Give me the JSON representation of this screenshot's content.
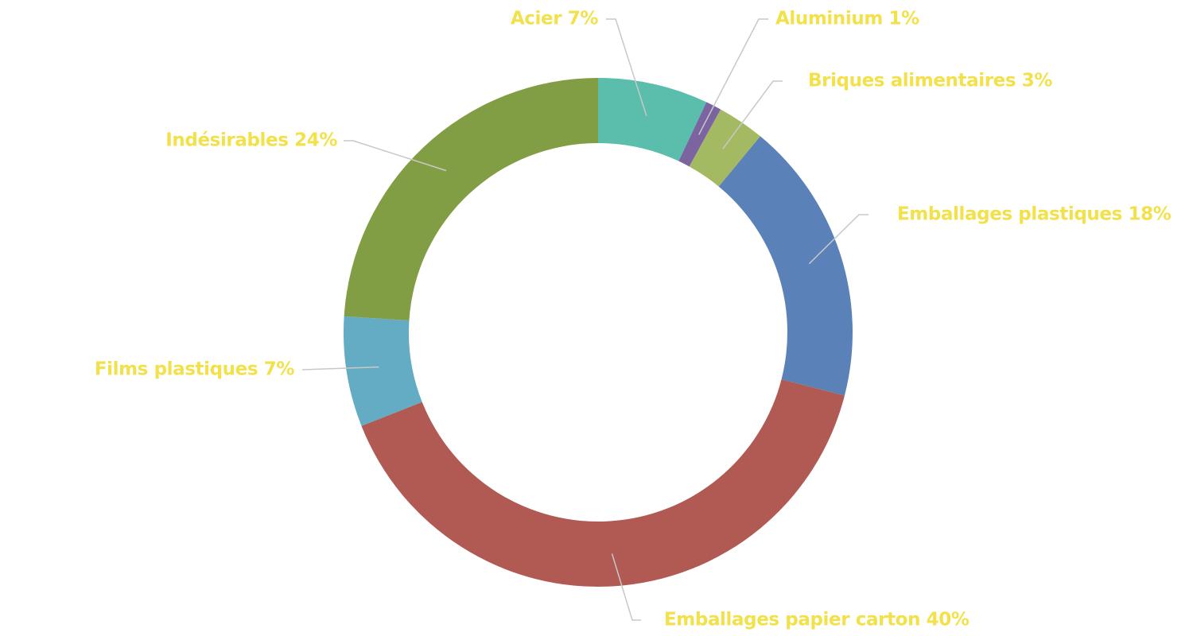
{
  "chart_data": {
    "type": "pie",
    "variant": "donut",
    "legend": "none",
    "label_color": "#F2E14A",
    "leader_color": "#C8C8C8",
    "slices": [
      {
        "label": "Acier",
        "value": 7,
        "display": "Acier 7%",
        "color": "#5BBEAD"
      },
      {
        "label": "Aluminium",
        "value": 1,
        "display": "Aluminium 1%",
        "color": "#7B64A0"
      },
      {
        "label": "Briques alimentaires",
        "value": 3,
        "display": "Briques alimentaires 3%",
        "color": "#A3BA63"
      },
      {
        "label": "Emballages plastiques",
        "value": 18,
        "display": "Emballages plastiques 18%",
        "color": "#5A82B8"
      },
      {
        "label": "Emballages papier carton",
        "value": 40,
        "display": "Emballages papier carton 40%",
        "color": "#B15A53"
      },
      {
        "label": "Films plastiques",
        "value": 7,
        "display": "Films plastiques 7%",
        "color": "#64ABC4"
      },
      {
        "label": "Indésirables",
        "value": 24,
        "display": "Indésirables 24%",
        "color": "#829E44"
      }
    ]
  }
}
